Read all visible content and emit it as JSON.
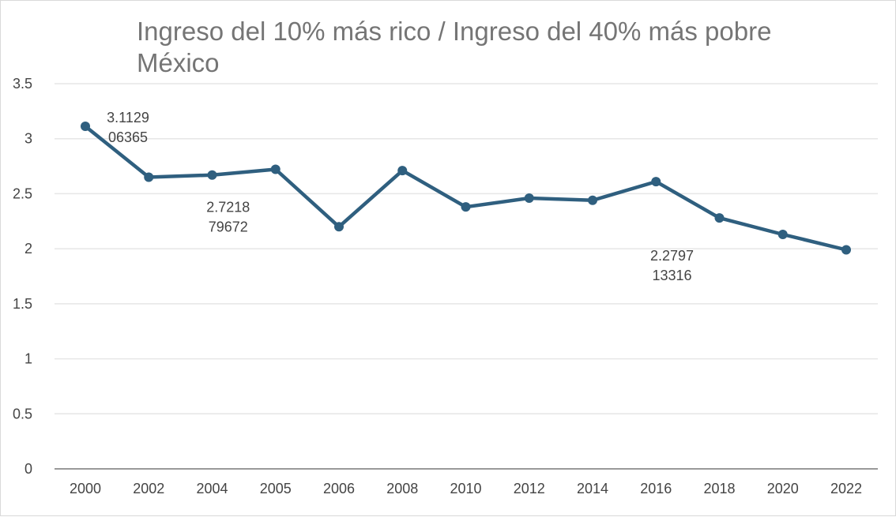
{
  "chart_data": {
    "type": "line",
    "title": "Ingreso del 10% más rico / Ingreso del 40% más pobre",
    "subtitle": "México",
    "categories": [
      "2000",
      "2002",
      "2004",
      "2005",
      "2006",
      "2008",
      "2010",
      "2012",
      "2014",
      "2016",
      "2018",
      "2020",
      "2022"
    ],
    "series": [
      {
        "values": [
          3.113,
          2.65,
          2.67,
          2.722,
          2.2,
          2.71,
          2.38,
          2.46,
          2.44,
          2.61,
          2.28,
          2.13,
          1.99
        ],
        "color": "#2f5f7f"
      }
    ],
    "ylim": [
      0,
      3.5
    ],
    "yticks": [
      "0",
      "0.5",
      "1",
      "1.5",
      "2",
      "2.5",
      "3",
      "3.5"
    ],
    "grid": true,
    "legend": "none",
    "data_labels": [
      {
        "index": 0,
        "lines": [
          "3.1129",
          "06365"
        ],
        "placement": "right-above"
      },
      {
        "index": 3,
        "lines": [
          "2.7218",
          "79672"
        ],
        "placement": "below-left"
      },
      {
        "index": 10,
        "lines": [
          "2.2797",
          "13316"
        ],
        "placement": "below-left"
      }
    ]
  }
}
